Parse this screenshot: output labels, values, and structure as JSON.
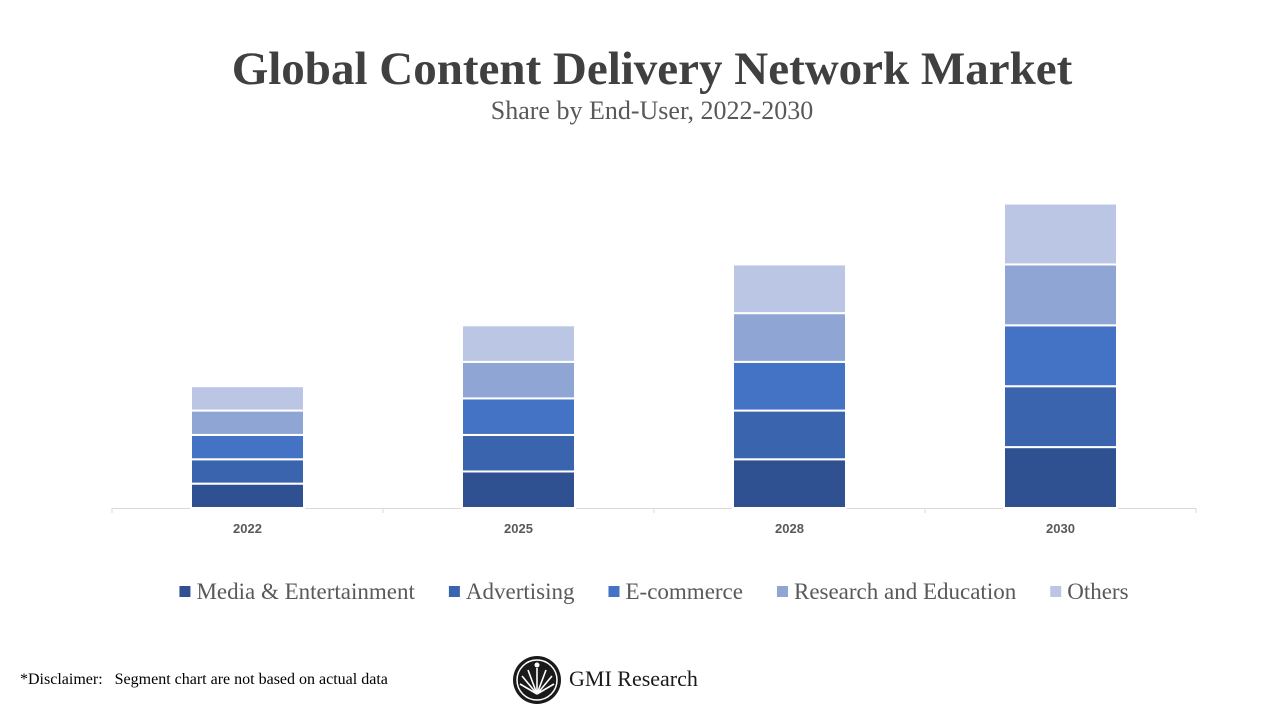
{
  "chart_data": {
    "type": "stacked-bar",
    "title": "Global Content Delivery Network Market",
    "subtitle": "Share by End-User, 2022-2030",
    "categories": [
      "2022",
      "2025",
      "2028",
      "2030"
    ],
    "series": [
      {
        "name": "Media & Entertainment",
        "color": "#2f5192",
        "values": [
          5,
          7.5,
          10,
          12.5
        ]
      },
      {
        "name": "Advertising",
        "color": "#3a65ae",
        "values": [
          5,
          7.5,
          10,
          12.5
        ]
      },
      {
        "name": "E-commerce",
        "color": "#4472c4",
        "values": [
          5,
          7.5,
          10,
          12.5
        ]
      },
      {
        "name": "Research and Education",
        "color": "#8fa5d4",
        "values": [
          5,
          7.5,
          10,
          12.5
        ]
      },
      {
        "name": "Others",
        "color": "#bac6e3",
        "values": [
          5,
          7.5,
          10,
          12.5
        ]
      }
    ],
    "ylim": [
      0,
      70
    ],
    "grid": false,
    "legend": "bottom"
  },
  "footer": {
    "disclaimer": "*Disclaimer:   Segment chart are not based on actual data",
    "brand": "GMI Research"
  }
}
